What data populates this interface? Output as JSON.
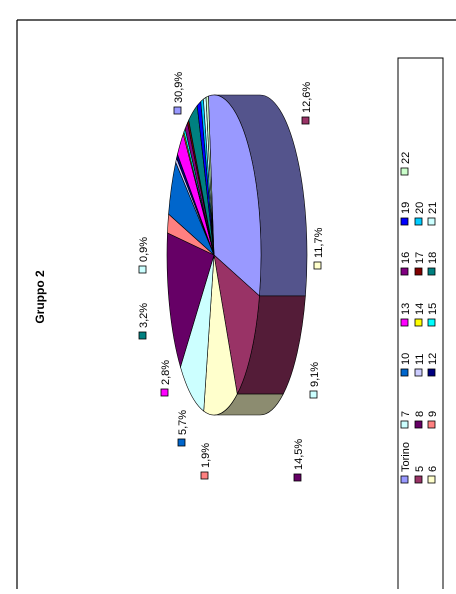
{
  "chart_data": {
    "type": "pie",
    "title": "Gruppo 2",
    "three_d": true,
    "rotated_page": true,
    "legend_position": "right",
    "categories": [
      "Torino",
      "5",
      "6",
      "7",
      "8",
      "9",
      "10",
      "11",
      "12",
      "13",
      "14",
      "15",
      "16",
      "17",
      "18",
      "19",
      "20",
      "21",
      "22"
    ],
    "colors": {
      "Torino": "#9999ff",
      "5": "#993366",
      "6": "#ffffcc",
      "7": "#ccffff",
      "8": "#660066",
      "9": "#ff8080",
      "10": "#0066cc",
      "11": "#ccccff",
      "12": "#000080",
      "13": "#ff00ff",
      "14": "#ffff00",
      "15": "#00ffff",
      "16": "#800080",
      "17": "#800000",
      "18": "#008080",
      "19": "#0000ff",
      "20": "#00ccff",
      "21": "#ccffff",
      "22": "#ccffcc"
    },
    "slices": [
      {
        "category": "Torino",
        "value": 30.9,
        "label": "30,9%"
      },
      {
        "category": "5",
        "value": 12.6,
        "label": "12,6%"
      },
      {
        "category": "6",
        "value": 11.7,
        "label": "11,7%"
      },
      {
        "category": "7",
        "value": 9.1,
        "label": "9,1%"
      },
      {
        "category": "8",
        "value": 14.5,
        "label": "14,5%"
      },
      {
        "category": "9",
        "value": 1.9,
        "label": "1,9%"
      },
      {
        "category": "10",
        "value": 5.7,
        "label": "5,7%"
      },
      {
        "category": "11",
        "value": 0.5,
        "label": ""
      },
      {
        "category": "12",
        "value": 0.5,
        "label": ""
      },
      {
        "category": "13",
        "value": 2.8,
        "label": "2,8%"
      },
      {
        "category": "14",
        "value": 0.3,
        "label": ""
      },
      {
        "category": "15",
        "value": 0.5,
        "label": ""
      },
      {
        "category": "16",
        "value": 1.0,
        "label": ""
      },
      {
        "category": "17",
        "value": 0.5,
        "label": ""
      },
      {
        "category": "18",
        "value": 3.2,
        "label": "3,2%"
      },
      {
        "category": "19",
        "value": 1.3,
        "label": ""
      },
      {
        "category": "20",
        "value": 0.9,
        "label": ""
      },
      {
        "category": "21",
        "value": 0.9,
        "label": "0,9%"
      },
      {
        "category": "22",
        "value": 0.8,
        "label": ""
      }
    ]
  }
}
